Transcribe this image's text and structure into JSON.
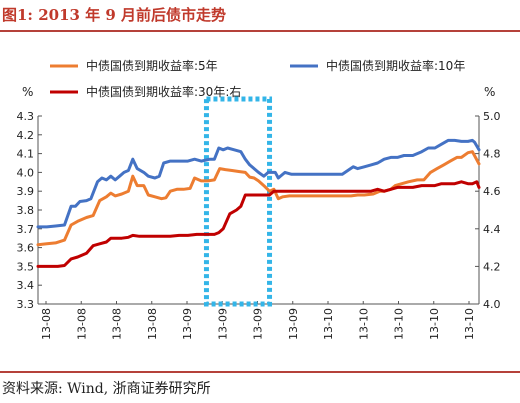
{
  "page": {
    "title": "图1: 2013 年 9 月前后债市走势",
    "source": "资料来源: Wind, 浙商证券研究所"
  },
  "chart_data": {
    "type": "line",
    "y_left": {
      "unit": "%",
      "lim": [
        3.3,
        4.3
      ],
      "ticks": [
        3.3,
        3.4,
        3.5,
        3.6,
        3.7,
        3.8,
        3.9,
        4.0,
        4.1,
        4.2,
        4.3
      ]
    },
    "y_right": {
      "unit": "%",
      "lim": [
        4.0,
        5.0
      ],
      "ticks": [
        4.0,
        4.2,
        4.4,
        4.6,
        4.8,
        5.0
      ]
    },
    "x_ticks": [
      "13-08",
      "13-08",
      "13-08",
      "13-08",
      "13-09",
      "13-09",
      "13-09",
      "13-09",
      "13-10",
      "13-10",
      "13-10",
      "13-10",
      "13-10"
    ],
    "grid": false,
    "legend_position": "top",
    "highlight_box": {
      "x_range": [
        0.382,
        0.525
      ],
      "style": "dashed",
      "color": "#33b5e8"
    },
    "series": [
      {
        "name": "中债国债到期收益率:5年",
        "axis": "left",
        "color": "#ed7d31",
        "points": [
          [
            0,
            3.615
          ],
          [
            0.02,
            3.62
          ],
          [
            0.04,
            3.625
          ],
          [
            0.06,
            3.64
          ],
          [
            0.075,
            3.72
          ],
          [
            0.09,
            3.74
          ],
          [
            0.11,
            3.76
          ],
          [
            0.125,
            3.77
          ],
          [
            0.14,
            3.85
          ],
          [
            0.155,
            3.87
          ],
          [
            0.165,
            3.89
          ],
          [
            0.175,
            3.875
          ],
          [
            0.19,
            3.885
          ],
          [
            0.205,
            3.9
          ],
          [
            0.215,
            3.98
          ],
          [
            0.225,
            3.93
          ],
          [
            0.24,
            3.93
          ],
          [
            0.25,
            3.88
          ],
          [
            0.265,
            3.87
          ],
          [
            0.28,
            3.86
          ],
          [
            0.29,
            3.865
          ],
          [
            0.3,
            3.9
          ],
          [
            0.315,
            3.91
          ],
          [
            0.33,
            3.91
          ],
          [
            0.345,
            3.915
          ],
          [
            0.355,
            3.97
          ],
          [
            0.37,
            3.955
          ],
          [
            0.385,
            3.955
          ],
          [
            0.4,
            3.96
          ],
          [
            0.412,
            4.02
          ],
          [
            0.425,
            4.015
          ],
          [
            0.44,
            4.01
          ],
          [
            0.455,
            4.005
          ],
          [
            0.47,
            4.0
          ],
          [
            0.48,
            3.975
          ],
          [
            0.49,
            3.97
          ],
          [
            0.5,
            3.955
          ],
          [
            0.512,
            3.93
          ],
          [
            0.525,
            3.9
          ],
          [
            0.535,
            3.91
          ],
          [
            0.545,
            3.86
          ],
          [
            0.555,
            3.87
          ],
          [
            0.57,
            3.875
          ],
          [
            0.59,
            3.875
          ],
          [
            0.62,
            3.875
          ],
          [
            0.65,
            3.875
          ],
          [
            0.68,
            3.875
          ],
          [
            0.71,
            3.875
          ],
          [
            0.725,
            3.88
          ],
          [
            0.74,
            3.88
          ],
          [
            0.76,
            3.885
          ],
          [
            0.775,
            3.9
          ],
          [
            0.785,
            3.9
          ],
          [
            0.8,
            3.91
          ],
          [
            0.81,
            3.93
          ],
          [
            0.825,
            3.94
          ],
          [
            0.84,
            3.95
          ],
          [
            0.86,
            3.96
          ],
          [
            0.875,
            3.96
          ],
          [
            0.89,
            4.0
          ],
          [
            0.905,
            4.02
          ],
          [
            0.92,
            4.04
          ],
          [
            0.935,
            4.06
          ],
          [
            0.95,
            4.08
          ],
          [
            0.96,
            4.08
          ],
          [
            0.975,
            4.105
          ],
          [
            0.985,
            4.11
          ],
          [
            1.0,
            4.045
          ]
        ]
      },
      {
        "name": "中债国债到期收益率:10年",
        "axis": "right",
        "color": "#4472c4",
        "points": [
          [
            0,
            4.41
          ],
          [
            0.02,
            4.41
          ],
          [
            0.04,
            4.415
          ],
          [
            0.06,
            4.42
          ],
          [
            0.075,
            4.52
          ],
          [
            0.085,
            4.52
          ],
          [
            0.095,
            4.545
          ],
          [
            0.11,
            4.55
          ],
          [
            0.12,
            4.56
          ],
          [
            0.135,
            4.65
          ],
          [
            0.145,
            4.67
          ],
          [
            0.155,
            4.66
          ],
          [
            0.165,
            4.68
          ],
          [
            0.175,
            4.66
          ],
          [
            0.185,
            4.68
          ],
          [
            0.195,
            4.7
          ],
          [
            0.205,
            4.71
          ],
          [
            0.215,
            4.77
          ],
          [
            0.225,
            4.72
          ],
          [
            0.24,
            4.7
          ],
          [
            0.25,
            4.68
          ],
          [
            0.265,
            4.67
          ],
          [
            0.275,
            4.68
          ],
          [
            0.285,
            4.75
          ],
          [
            0.3,
            4.76
          ],
          [
            0.32,
            4.76
          ],
          [
            0.34,
            4.76
          ],
          [
            0.355,
            4.77
          ],
          [
            0.37,
            4.76
          ],
          [
            0.39,
            4.77
          ],
          [
            0.4,
            4.77
          ],
          [
            0.41,
            4.83
          ],
          [
            0.42,
            4.82
          ],
          [
            0.43,
            4.83
          ],
          [
            0.445,
            4.82
          ],
          [
            0.46,
            4.81
          ],
          [
            0.47,
            4.77
          ],
          [
            0.48,
            4.74
          ],
          [
            0.49,
            4.72
          ],
          [
            0.5,
            4.7
          ],
          [
            0.512,
            4.68
          ],
          [
            0.522,
            4.7
          ],
          [
            0.53,
            4.7
          ],
          [
            0.538,
            4.7
          ],
          [
            0.545,
            4.67
          ],
          [
            0.56,
            4.7
          ],
          [
            0.575,
            4.69
          ],
          [
            0.6,
            4.69
          ],
          [
            0.625,
            4.69
          ],
          [
            0.65,
            4.69
          ],
          [
            0.67,
            4.69
          ],
          [
            0.69,
            4.69
          ],
          [
            0.715,
            4.73
          ],
          [
            0.725,
            4.72
          ],
          [
            0.74,
            4.73
          ],
          [
            0.755,
            4.74
          ],
          [
            0.77,
            4.75
          ],
          [
            0.785,
            4.77
          ],
          [
            0.8,
            4.78
          ],
          [
            0.815,
            4.78
          ],
          [
            0.83,
            4.79
          ],
          [
            0.85,
            4.79
          ],
          [
            0.87,
            4.81
          ],
          [
            0.885,
            4.83
          ],
          [
            0.9,
            4.83
          ],
          [
            0.915,
            4.85
          ],
          [
            0.93,
            4.87
          ],
          [
            0.945,
            4.87
          ],
          [
            0.96,
            4.865
          ],
          [
            0.975,
            4.865
          ],
          [
            0.985,
            4.87
          ],
          [
            0.99,
            4.86
          ],
          [
            1.0,
            4.82
          ]
        ]
      },
      {
        "name": "中债国债到期收益率:30年:右",
        "axis": "right",
        "color": "#c00000",
        "points": [
          [
            0,
            4.2
          ],
          [
            0.02,
            4.2
          ],
          [
            0.045,
            4.2
          ],
          [
            0.06,
            4.205
          ],
          [
            0.075,
            4.24
          ],
          [
            0.09,
            4.25
          ],
          [
            0.11,
            4.27
          ],
          [
            0.125,
            4.31
          ],
          [
            0.14,
            4.32
          ],
          [
            0.155,
            4.33
          ],
          [
            0.165,
            4.35
          ],
          [
            0.175,
            4.35
          ],
          [
            0.19,
            4.35
          ],
          [
            0.205,
            4.355
          ],
          [
            0.215,
            4.365
          ],
          [
            0.23,
            4.36
          ],
          [
            0.25,
            4.36
          ],
          [
            0.275,
            4.36
          ],
          [
            0.3,
            4.36
          ],
          [
            0.32,
            4.365
          ],
          [
            0.34,
            4.365
          ],
          [
            0.36,
            4.37
          ],
          [
            0.38,
            4.37
          ],
          [
            0.4,
            4.37
          ],
          [
            0.41,
            4.38
          ],
          [
            0.42,
            4.4
          ],
          [
            0.435,
            4.48
          ],
          [
            0.45,
            4.5
          ],
          [
            0.46,
            4.52
          ],
          [
            0.47,
            4.58
          ],
          [
            0.48,
            4.58
          ],
          [
            0.49,
            4.58
          ],
          [
            0.5,
            4.58
          ],
          [
            0.512,
            4.58
          ],
          [
            0.525,
            4.58
          ],
          [
            0.535,
            4.6
          ],
          [
            0.545,
            4.6
          ],
          [
            0.56,
            4.6
          ],
          [
            0.59,
            4.6
          ],
          [
            0.62,
            4.6
          ],
          [
            0.65,
            4.6
          ],
          [
            0.68,
            4.6
          ],
          [
            0.71,
            4.6
          ],
          [
            0.725,
            4.6
          ],
          [
            0.74,
            4.6
          ],
          [
            0.755,
            4.6
          ],
          [
            0.77,
            4.61
          ],
          [
            0.785,
            4.6
          ],
          [
            0.8,
            4.61
          ],
          [
            0.815,
            4.62
          ],
          [
            0.83,
            4.62
          ],
          [
            0.85,
            4.62
          ],
          [
            0.87,
            4.63
          ],
          [
            0.885,
            4.63
          ],
          [
            0.9,
            4.63
          ],
          [
            0.915,
            4.64
          ],
          [
            0.93,
            4.64
          ],
          [
            0.945,
            4.64
          ],
          [
            0.96,
            4.65
          ],
          [
            0.975,
            4.64
          ],
          [
            0.985,
            4.64
          ],
          [
            0.995,
            4.65
          ],
          [
            1.0,
            4.62
          ]
        ]
      }
    ]
  }
}
